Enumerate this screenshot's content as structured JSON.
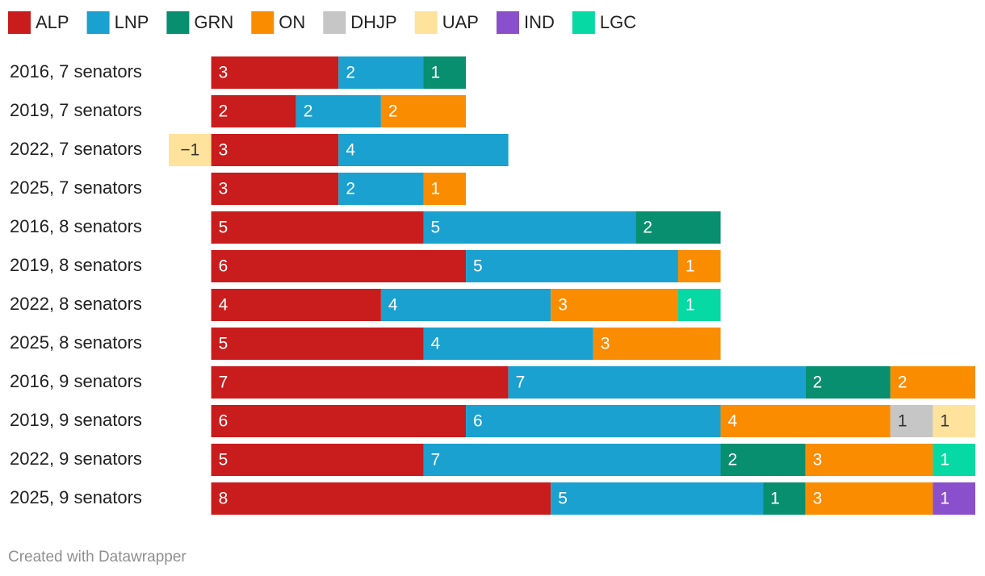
{
  "chart_data": {
    "type": "stacked-bar-horizontal",
    "categories": [
      "2016, 7 senators",
      "2019, 7 senators",
      "2022, 7 senators",
      "2025, 7 senators",
      "2016, 8 senators",
      "2019, 8 senators",
      "2022, 8 senators",
      "2025, 8 senators",
      "2016, 9 senators",
      "2019, 9 senators",
      "2022, 9 senators",
      "2025, 9 senators"
    ],
    "series": [
      {
        "name": "ALP",
        "color": "#c91d1d",
        "values": [
          3,
          2,
          3,
          3,
          5,
          6,
          4,
          5,
          7,
          6,
          5,
          8
        ]
      },
      {
        "name": "LNP",
        "color": "#1aa1cf",
        "values": [
          2,
          2,
          4,
          2,
          5,
          5,
          4,
          4,
          7,
          6,
          7,
          5
        ]
      },
      {
        "name": "GRN",
        "color": "#078f6f",
        "values": [
          1,
          null,
          null,
          null,
          2,
          null,
          null,
          null,
          2,
          null,
          2,
          1
        ]
      },
      {
        "name": "ON",
        "color": "#fa8c00",
        "values": [
          null,
          2,
          null,
          1,
          null,
          1,
          3,
          3,
          2,
          4,
          3,
          3
        ]
      },
      {
        "name": "DHJP",
        "color": "#c6c6c6",
        "values": [
          null,
          null,
          null,
          null,
          null,
          null,
          null,
          null,
          null,
          1,
          null,
          null
        ]
      },
      {
        "name": "UAP",
        "color": "#ffe39d",
        "values": [
          null,
          null,
          -1,
          null,
          null,
          null,
          null,
          null,
          null,
          1,
          null,
          null
        ],
        "value_labels": [
          null,
          null,
          "−1",
          null,
          null,
          null,
          null,
          null,
          null,
          "1",
          null,
          null
        ]
      },
      {
        "name": "IND",
        "color": "#8a4fcb",
        "values": [
          null,
          null,
          null,
          null,
          null,
          null,
          null,
          null,
          null,
          null,
          null,
          1
        ]
      },
      {
        "name": "LGC",
        "color": "#06d9a4",
        "values": [
          null,
          null,
          null,
          null,
          null,
          null,
          1,
          null,
          null,
          null,
          1,
          null
        ]
      }
    ],
    "xlim": [
      -1,
      18
    ],
    "footer": "Created with Datawrapper"
  }
}
